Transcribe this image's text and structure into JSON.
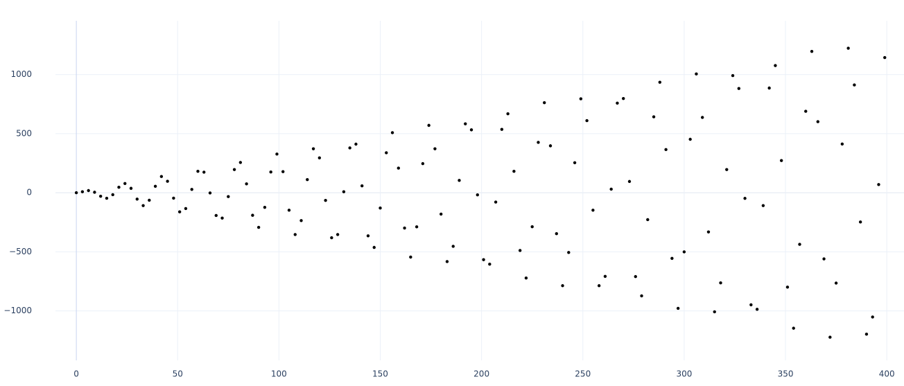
{
  "chart_data": {
    "type": "scatter",
    "color": "#000000",
    "grid": true,
    "xlim": [
      -10.3,
      408.5
    ],
    "ylim": [
      -1419,
      1455
    ],
    "xticks": [
      0,
      50,
      100,
      150,
      200,
      250,
      300,
      350,
      400
    ],
    "yticks": [
      {
        "value": -1000,
        "label": "−1000"
      },
      {
        "value": -500,
        "label": "−500"
      },
      0,
      500,
      1000
    ],
    "x": [
      0,
      3,
      6,
      9,
      12,
      15,
      18,
      21,
      24,
      27,
      30,
      33,
      36,
      39,
      42,
      45,
      48,
      51,
      54,
      57,
      60,
      63,
      66,
      69,
      72,
      75,
      78,
      81,
      84,
      87,
      90,
      93,
      96,
      99,
      102,
      105,
      108,
      111,
      114,
      117,
      120,
      123,
      126,
      129,
      132,
      135,
      138,
      141,
      144,
      147,
      150,
      153,
      156,
      159,
      162,
      165,
      168,
      171,
      174,
      177,
      180,
      183,
      186,
      189,
      192,
      195,
      198,
      201,
      204,
      207,
      210,
      213,
      216,
      219,
      222,
      225,
      228,
      231,
      234,
      237,
      240,
      243,
      246,
      249,
      252,
      255,
      258,
      261,
      264,
      267,
      270,
      273,
      276,
      279,
      282,
      285,
      288,
      291,
      294,
      297,
      300,
      303,
      306,
      309,
      312,
      315,
      318,
      321,
      324,
      327,
      330,
      333,
      336,
      339,
      342,
      345,
      348,
      351,
      354,
      357,
      360,
      363,
      366,
      369,
      372,
      375,
      378,
      381,
      384,
      387,
      390,
      393,
      396,
      399
    ],
    "values": [
      0,
      8,
      18,
      4,
      -30,
      -47,
      -17,
      46,
      78,
      37,
      -54,
      -109,
      -64,
      54,
      137,
      97,
      -46,
      -162,
      -134,
      28,
      181,
      174,
      -2,
      -193,
      -215,
      -33,
      196,
      256,
      75,
      -191,
      -293,
      -124,
      175,
      327,
      178,
      -148,
      -354,
      -236,
      111,
      372,
      295,
      -65,
      -381,
      -354,
      8,
      379,
      411,
      58,
      -365,
      -463,
      -130,
      338,
      508,
      208,
      -299,
      -545,
      -289,
      246,
      570,
      372,
      -181,
      -583,
      -454,
      104,
      583,
      532,
      -18,
      -567,
      -605,
      -79,
      536,
      668,
      181,
      -489,
      -722,
      -288,
      426,
      762,
      397,
      -347,
      -787,
      -506,
      254,
      795,
      610,
      -148,
      -787,
      -708,
      30,
      758,
      797,
      95,
      -710,
      -873,
      -228,
      642,
      935,
      365,
      -556,
      -979,
      -501,
      452,
      1005,
      637,
      -332,
      -1008,
      -763,
      196,
      991,
      882,
      -48,
      -949,
      -987,
      -109,
      886,
      1076,
      272,
      -799,
      -1147,
      -437,
      689,
      1196,
      601,
      -560,
      -1223,
      -765,
      412,
      1223,
      912,
      -248,
      -1197,
      -1052,
      69,
      1144
    ]
  }
}
